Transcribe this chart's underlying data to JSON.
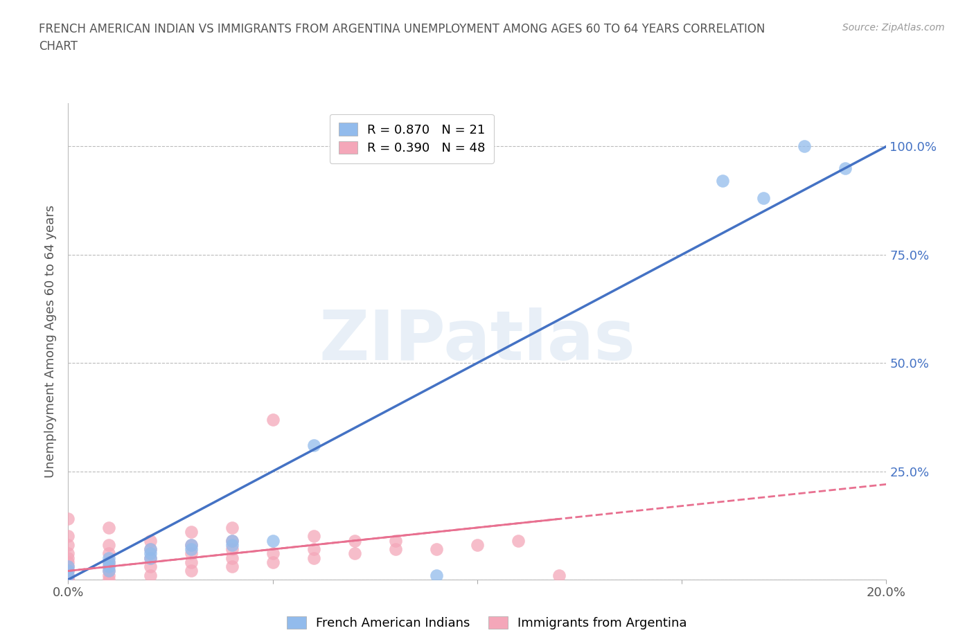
{
  "title_line1": "FRENCH AMERICAN INDIAN VS IMMIGRANTS FROM ARGENTINA UNEMPLOYMENT AMONG AGES 60 TO 64 YEARS CORRELATION",
  "title_line2": "CHART",
  "source": "Source: ZipAtlas.com",
  "ylabel": "Unemployment Among Ages 60 to 64 years",
  "xlim": [
    0.0,
    0.2
  ],
  "ylim": [
    0.0,
    1.1
  ],
  "watermark": "ZIPatlas",
  "legend1_r": "0.870",
  "legend1_n": "21",
  "legend2_r": "0.390",
  "legend2_n": "48",
  "blue_color": "#92BBEC",
  "pink_color": "#F4A7B9",
  "blue_line_color": "#4472C4",
  "pink_line_color": "#E87090",
  "right_tick_color": "#4472C4",
  "background_color": "#FFFFFF",
  "grid_color": "#BBBBBB",
  "fi_x": [
    0.0,
    0.0,
    0.0,
    0.01,
    0.01,
    0.01,
    0.01,
    0.02,
    0.02,
    0.02,
    0.03,
    0.03,
    0.04,
    0.04,
    0.05,
    0.06,
    0.09,
    0.16,
    0.17,
    0.18,
    0.19
  ],
  "fi_y": [
    0.01,
    0.02,
    0.03,
    0.02,
    0.03,
    0.04,
    0.05,
    0.05,
    0.06,
    0.07,
    0.07,
    0.08,
    0.08,
    0.09,
    0.09,
    0.31,
    0.01,
    0.92,
    0.88,
    1.0,
    0.95
  ],
  "arg_x": [
    0.0,
    0.0,
    0.0,
    0.0,
    0.0,
    0.0,
    0.0,
    0.0,
    0.0,
    0.0,
    0.0,
    0.0,
    0.01,
    0.01,
    0.01,
    0.01,
    0.01,
    0.01,
    0.01,
    0.02,
    0.02,
    0.02,
    0.02,
    0.02,
    0.03,
    0.03,
    0.03,
    0.03,
    0.03,
    0.04,
    0.04,
    0.04,
    0.04,
    0.04,
    0.05,
    0.05,
    0.05,
    0.06,
    0.06,
    0.06,
    0.07,
    0.07,
    0.08,
    0.08,
    0.09,
    0.1,
    0.11,
    0.12
  ],
  "arg_y": [
    0.0,
    0.0,
    0.0,
    0.01,
    0.02,
    0.03,
    0.04,
    0.05,
    0.06,
    0.08,
    0.1,
    0.14,
    0.0,
    0.01,
    0.02,
    0.04,
    0.06,
    0.08,
    0.12,
    0.01,
    0.03,
    0.05,
    0.07,
    0.09,
    0.02,
    0.04,
    0.06,
    0.08,
    0.11,
    0.03,
    0.05,
    0.07,
    0.09,
    0.12,
    0.04,
    0.06,
    0.37,
    0.05,
    0.07,
    0.1,
    0.06,
    0.09,
    0.07,
    0.09,
    0.07,
    0.08,
    0.09,
    0.01
  ],
  "blue_line_x": [
    0.0,
    0.2
  ],
  "blue_line_y": [
    0.0,
    1.0
  ],
  "pink_line_x": [
    0.0,
    0.2
  ],
  "pink_line_y": [
    0.02,
    0.22
  ]
}
